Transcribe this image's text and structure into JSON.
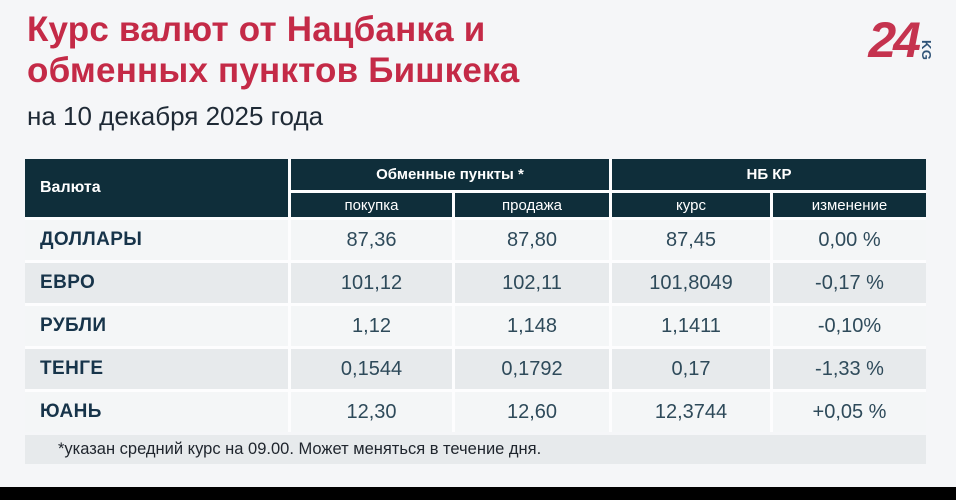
{
  "header": {
    "title_line1": "Курс валют от Нацбанка и",
    "title_line2": "обменных пунктов Бишкека",
    "subtitle": "на 10 декабря 2025 года"
  },
  "logo": {
    "number": "24",
    "suffix": "KG"
  },
  "chart_data": {
    "type": "table",
    "title": "Курс валют от Нацбанка и обменных пунктов Бишкека",
    "subtitle": "на 10 декабря 2025 года",
    "columns": [
      "Валюта",
      "покупка",
      "продажа",
      "курс",
      "изменение"
    ],
    "column_groups": [
      {
        "label": "Обменные пункты *",
        "spans": [
          "покупка",
          "продажа"
        ]
      },
      {
        "label": "НБ КР",
        "spans": [
          "курс",
          "изменение"
        ]
      }
    ],
    "rows": [
      {
        "currency": "ДОЛЛАРЫ",
        "buy": "87,36",
        "sell": "87,80",
        "rate": "87,45",
        "change": "0,00 %"
      },
      {
        "currency": "ЕВРО",
        "buy": "101,12",
        "sell": "102,11",
        "rate": "101,8049",
        "change": "-0,17 %"
      },
      {
        "currency": "РУБЛИ",
        "buy": "1,12",
        "sell": "1,148",
        "rate": "1,1411",
        "change": "-0,10%"
      },
      {
        "currency": "ТЕНГЕ",
        "buy": "0,1544",
        "sell": "0,1792",
        "rate": "0,17",
        "change": "-1,33 %"
      },
      {
        "currency": "ЮАНЬ",
        "buy": "12,30",
        "sell": "12,60",
        "rate": "12,3744",
        "change": "+0,05 %"
      }
    ]
  },
  "footnote": "*указан средний курс на 09.00. Может меняться в течение дня.",
  "colors": {
    "accent_red": "#c42a47",
    "header_bg": "#0f2e3a",
    "row_light": "#f4f6f7",
    "row_alt": "#e7eaec",
    "value_text": "#2e4a5a",
    "page_bg": "#f5f6f8",
    "logo_kg_blue": "#2f5377",
    "bottom_bar": "#000000"
  }
}
